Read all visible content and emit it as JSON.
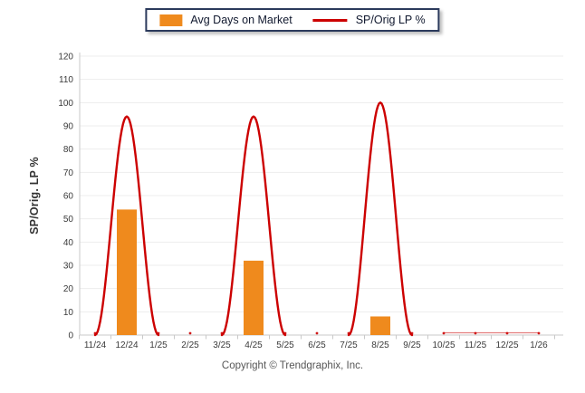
{
  "footer": {
    "copyright": "Copyright © Trendgraphix, Inc."
  },
  "chart_data": {
    "type": "bar",
    "subtype": "bar+line combo",
    "title": "",
    "xlabel": "",
    "ylabel": "SP/Orig. LP %",
    "ylim": [
      0,
      120
    ],
    "yticks": [
      0,
      10,
      20,
      30,
      40,
      50,
      60,
      70,
      80,
      90,
      100,
      110,
      120
    ],
    "grid": true,
    "legend_position": "top-center",
    "categories": [
      "11/24",
      "12/24",
      "1/25",
      "2/25",
      "3/25",
      "4/25",
      "5/25",
      "6/25",
      "7/25",
      "8/25",
      "9/25",
      "10/25",
      "11/25",
      "12/25",
      "1/26"
    ],
    "series": [
      {
        "name": "Avg Days on Market",
        "type": "bar",
        "color": "#EF8A1D",
        "values": [
          0,
          54,
          0,
          0,
          0,
          32,
          0,
          0,
          0,
          8,
          0,
          0,
          0,
          0,
          0
        ]
      },
      {
        "name": "SP/Orig LP %",
        "type": "line",
        "color": "#CC0000",
        "values": [
          0,
          94,
          0,
          0,
          0,
          94,
          0,
          0,
          0,
          100,
          0,
          0,
          0,
          0,
          0
        ]
      }
    ],
    "colors": {
      "gridline": "#EDEDED",
      "axis": "#C9C9C9",
      "tick_text": "#3A3A3A",
      "bar": "#EF8A1D",
      "line": "#CC0000"
    }
  }
}
